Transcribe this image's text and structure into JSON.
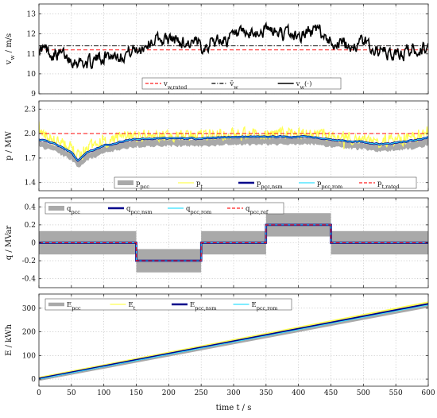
{
  "xlabel": "time t / s",
  "xticks": [
    "0",
    "50",
    "100",
    "150",
    "200",
    "250",
    "300",
    "350",
    "400",
    "450",
    "500",
    "550",
    "600"
  ],
  "colors": {
    "black": "#000000",
    "gray": "#a9a9a9",
    "yellow": "#ffff55",
    "navy": "#00008b",
    "cyan": "#33e0ff",
    "red": "#ff2020"
  },
  "chart_data": [
    {
      "type": "line",
      "ylabel": "v_w / m/s",
      "ylim": [
        9,
        13.5
      ],
      "yticks": [
        "9",
        "10",
        "11",
        "12",
        "13"
      ],
      "grid": true,
      "legend_position": "bottom-center",
      "series": [
        {
          "name": "v_w,rated",
          "style": "dashed",
          "color": "#ff2020",
          "x": [
            0,
            600
          ],
          "values": [
            11.2,
            11.2
          ]
        },
        {
          "name": "v̄_w",
          "style": "dash-dot",
          "color": "#000000",
          "x": [
            0,
            600
          ],
          "values": [
            11.4,
            11.4
          ]
        },
        {
          "name": "v_w(·)",
          "style": "solid",
          "color": "#000000",
          "x": [
            0,
            25,
            50,
            75,
            100,
            125,
            150,
            175,
            200,
            225,
            250,
            275,
            300,
            325,
            350,
            375,
            400,
            425,
            450,
            475,
            500,
            525,
            550,
            575,
            600
          ],
          "values": [
            11.3,
            11.0,
            10.8,
            10.5,
            10.9,
            11.0,
            11.2,
            11.7,
            11.7,
            11.6,
            11.4,
            11.7,
            11.8,
            11.9,
            12.2,
            12.0,
            11.9,
            12.2,
            11.7,
            11.4,
            11.6,
            11.1,
            10.9,
            11.2,
            11.3
          ]
        }
      ]
    },
    {
      "type": "line",
      "ylabel": "p / MW",
      "ylim": [
        1.3,
        2.4
      ],
      "yticks": [
        "1.4",
        "1.7",
        "2.0",
        "2.3"
      ],
      "grid": true,
      "legend_position": "bottom-center",
      "series": [
        {
          "name": "p_pcc",
          "color": "#a9a9a9",
          "x": [
            0,
            25,
            50,
            60,
            75,
            100,
            125,
            150,
            175,
            200,
            225,
            250,
            275,
            300,
            325,
            350,
            375,
            400,
            425,
            450,
            475,
            500,
            525,
            550,
            575,
            600
          ],
          "values": [
            1.88,
            1.82,
            1.72,
            1.63,
            1.72,
            1.8,
            1.85,
            1.88,
            1.89,
            1.89,
            1.89,
            1.89,
            1.9,
            1.91,
            1.91,
            1.91,
            1.91,
            1.91,
            1.91,
            1.88,
            1.86,
            1.85,
            1.82,
            1.84,
            1.86,
            1.9
          ]
        },
        {
          "name": "p_t",
          "color": "#ffff55",
          "x": [
            0,
            25,
            50,
            60,
            75,
            100,
            125,
            150,
            175,
            200,
            225,
            250,
            275,
            300,
            325,
            350,
            375,
            400,
            425,
            450,
            475,
            500,
            525,
            550,
            575,
            600
          ],
          "values": [
            1.98,
            1.92,
            1.82,
            1.72,
            1.82,
            1.9,
            1.95,
            1.97,
            1.98,
            1.98,
            1.98,
            1.98,
            1.99,
            2.0,
            2.0,
            2.0,
            2.0,
            2.0,
            2.0,
            1.97,
            1.95,
            1.94,
            1.91,
            1.93,
            1.95,
            1.99
          ]
        },
        {
          "name": "p_pcc,nsm",
          "color": "#00008b",
          "x": [
            0,
            25,
            50,
            60,
            75,
            100,
            125,
            150,
            175,
            200,
            225,
            250,
            275,
            300,
            325,
            350,
            375,
            400,
            425,
            450,
            475,
            500,
            525,
            550,
            575,
            600
          ],
          "values": [
            1.93,
            1.87,
            1.77,
            1.67,
            1.77,
            1.85,
            1.9,
            1.93,
            1.94,
            1.94,
            1.94,
            1.94,
            1.95,
            1.96,
            1.96,
            1.96,
            1.96,
            1.96,
            1.96,
            1.93,
            1.91,
            1.9,
            1.87,
            1.89,
            1.91,
            1.95
          ]
        },
        {
          "name": "p_pcc,rom",
          "color": "#33e0ff",
          "x": [
            0,
            25,
            50,
            60,
            75,
            100,
            125,
            150,
            175,
            200,
            225,
            250,
            275,
            300,
            325,
            350,
            375,
            400,
            425,
            450,
            475,
            500,
            525,
            550,
            575,
            600
          ],
          "values": [
            1.93,
            1.87,
            1.77,
            1.67,
            1.77,
            1.85,
            1.9,
            1.93,
            1.94,
            1.94,
            1.94,
            1.94,
            1.95,
            1.96,
            1.96,
            1.96,
            1.96,
            1.96,
            1.96,
            1.93,
            1.91,
            1.9,
            1.87,
            1.89,
            1.91,
            1.95
          ]
        },
        {
          "name": "p_t,rated",
          "style": "dashed",
          "color": "#ff2020",
          "x": [
            0,
            600
          ],
          "values": [
            2.0,
            2.0
          ]
        }
      ]
    },
    {
      "type": "line",
      "ylabel": "q / MVar",
      "ylim": [
        -0.5,
        0.5
      ],
      "yticks": [
        "-0.4",
        "-0.2",
        "0",
        "0.2",
        "0.4"
      ],
      "grid": true,
      "legend_position": "top-center",
      "series": [
        {
          "name": "q_pcc",
          "color": "#a9a9a9",
          "x": [
            0,
            150,
            150,
            250,
            250,
            350,
            350,
            450,
            450,
            600
          ],
          "values": [
            0,
            0,
            -0.2,
            -0.2,
            0,
            0,
            0.2,
            0.2,
            0,
            0
          ],
          "band": 0.13
        },
        {
          "name": "q_pcc,nsm",
          "color": "#00008b",
          "x": [
            0,
            150,
            150,
            250,
            250,
            350,
            350,
            450,
            450,
            600
          ],
          "values": [
            0,
            0,
            -0.2,
            -0.2,
            0,
            0,
            0.2,
            0.2,
            0,
            0
          ]
        },
        {
          "name": "q_pcc,rom",
          "color": "#33e0ff",
          "x": [
            0,
            150,
            150,
            250,
            250,
            350,
            350,
            450,
            450,
            600
          ],
          "values": [
            0,
            0,
            -0.2,
            -0.2,
            0,
            0,
            0.2,
            0.2,
            0,
            0
          ]
        },
        {
          "name": "q_pcc,ref",
          "style": "dashed",
          "color": "#ff2020",
          "x": [
            0,
            150,
            150,
            250,
            250,
            350,
            350,
            450,
            450,
            600
          ],
          "values": [
            0,
            0,
            -0.2,
            -0.2,
            0,
            0,
            0.2,
            0.2,
            0,
            0
          ]
        }
      ]
    },
    {
      "type": "line",
      "ylabel": "E / kWh",
      "ylim": [
        -30,
        360
      ],
      "yticks": [
        "0",
        "100",
        "200",
        "300"
      ],
      "grid": true,
      "legend_position": "top-left",
      "series": [
        {
          "name": "E_pcc",
          "color": "#a9a9a9",
          "x": [
            0,
            600
          ],
          "values": [
            0,
            310
          ]
        },
        {
          "name": "E_t",
          "color": "#ffff55",
          "x": [
            0,
            600
          ],
          "values": [
            6,
            325
          ]
        },
        {
          "name": "E_pcc,nsm",
          "color": "#00008b",
          "x": [
            0,
            600
          ],
          "values": [
            2,
            318
          ]
        },
        {
          "name": "E_pcc,rom",
          "color": "#33e0ff",
          "x": [
            0,
            600
          ],
          "values": [
            0,
            314
          ]
        }
      ]
    }
  ]
}
